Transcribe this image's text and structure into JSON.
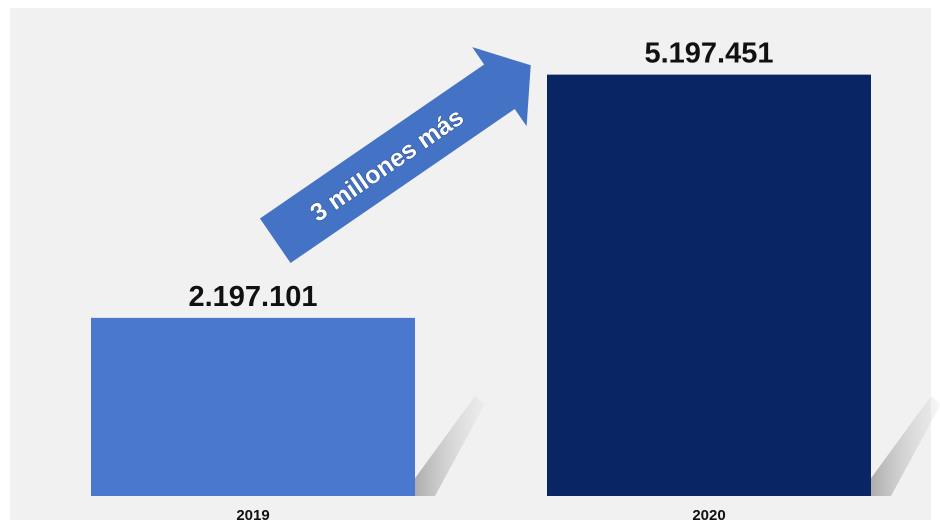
{
  "chart_data": {
    "type": "bar",
    "categories": [
      "2019",
      "2020"
    ],
    "values": [
      2197101,
      5197451
    ],
    "value_labels": [
      "2.197.101",
      "5.197.451"
    ],
    "bar_colors": [
      "#4b78cf",
      "#092564"
    ],
    "annotation": "3 millones más",
    "annotation_color": "#4472c4",
    "ylim": [
      0,
      5600000
    ],
    "grid": false,
    "legend": "none"
  },
  "colors": {
    "background": "#f1f1f1",
    "shadow": "#b9b9b9"
  }
}
